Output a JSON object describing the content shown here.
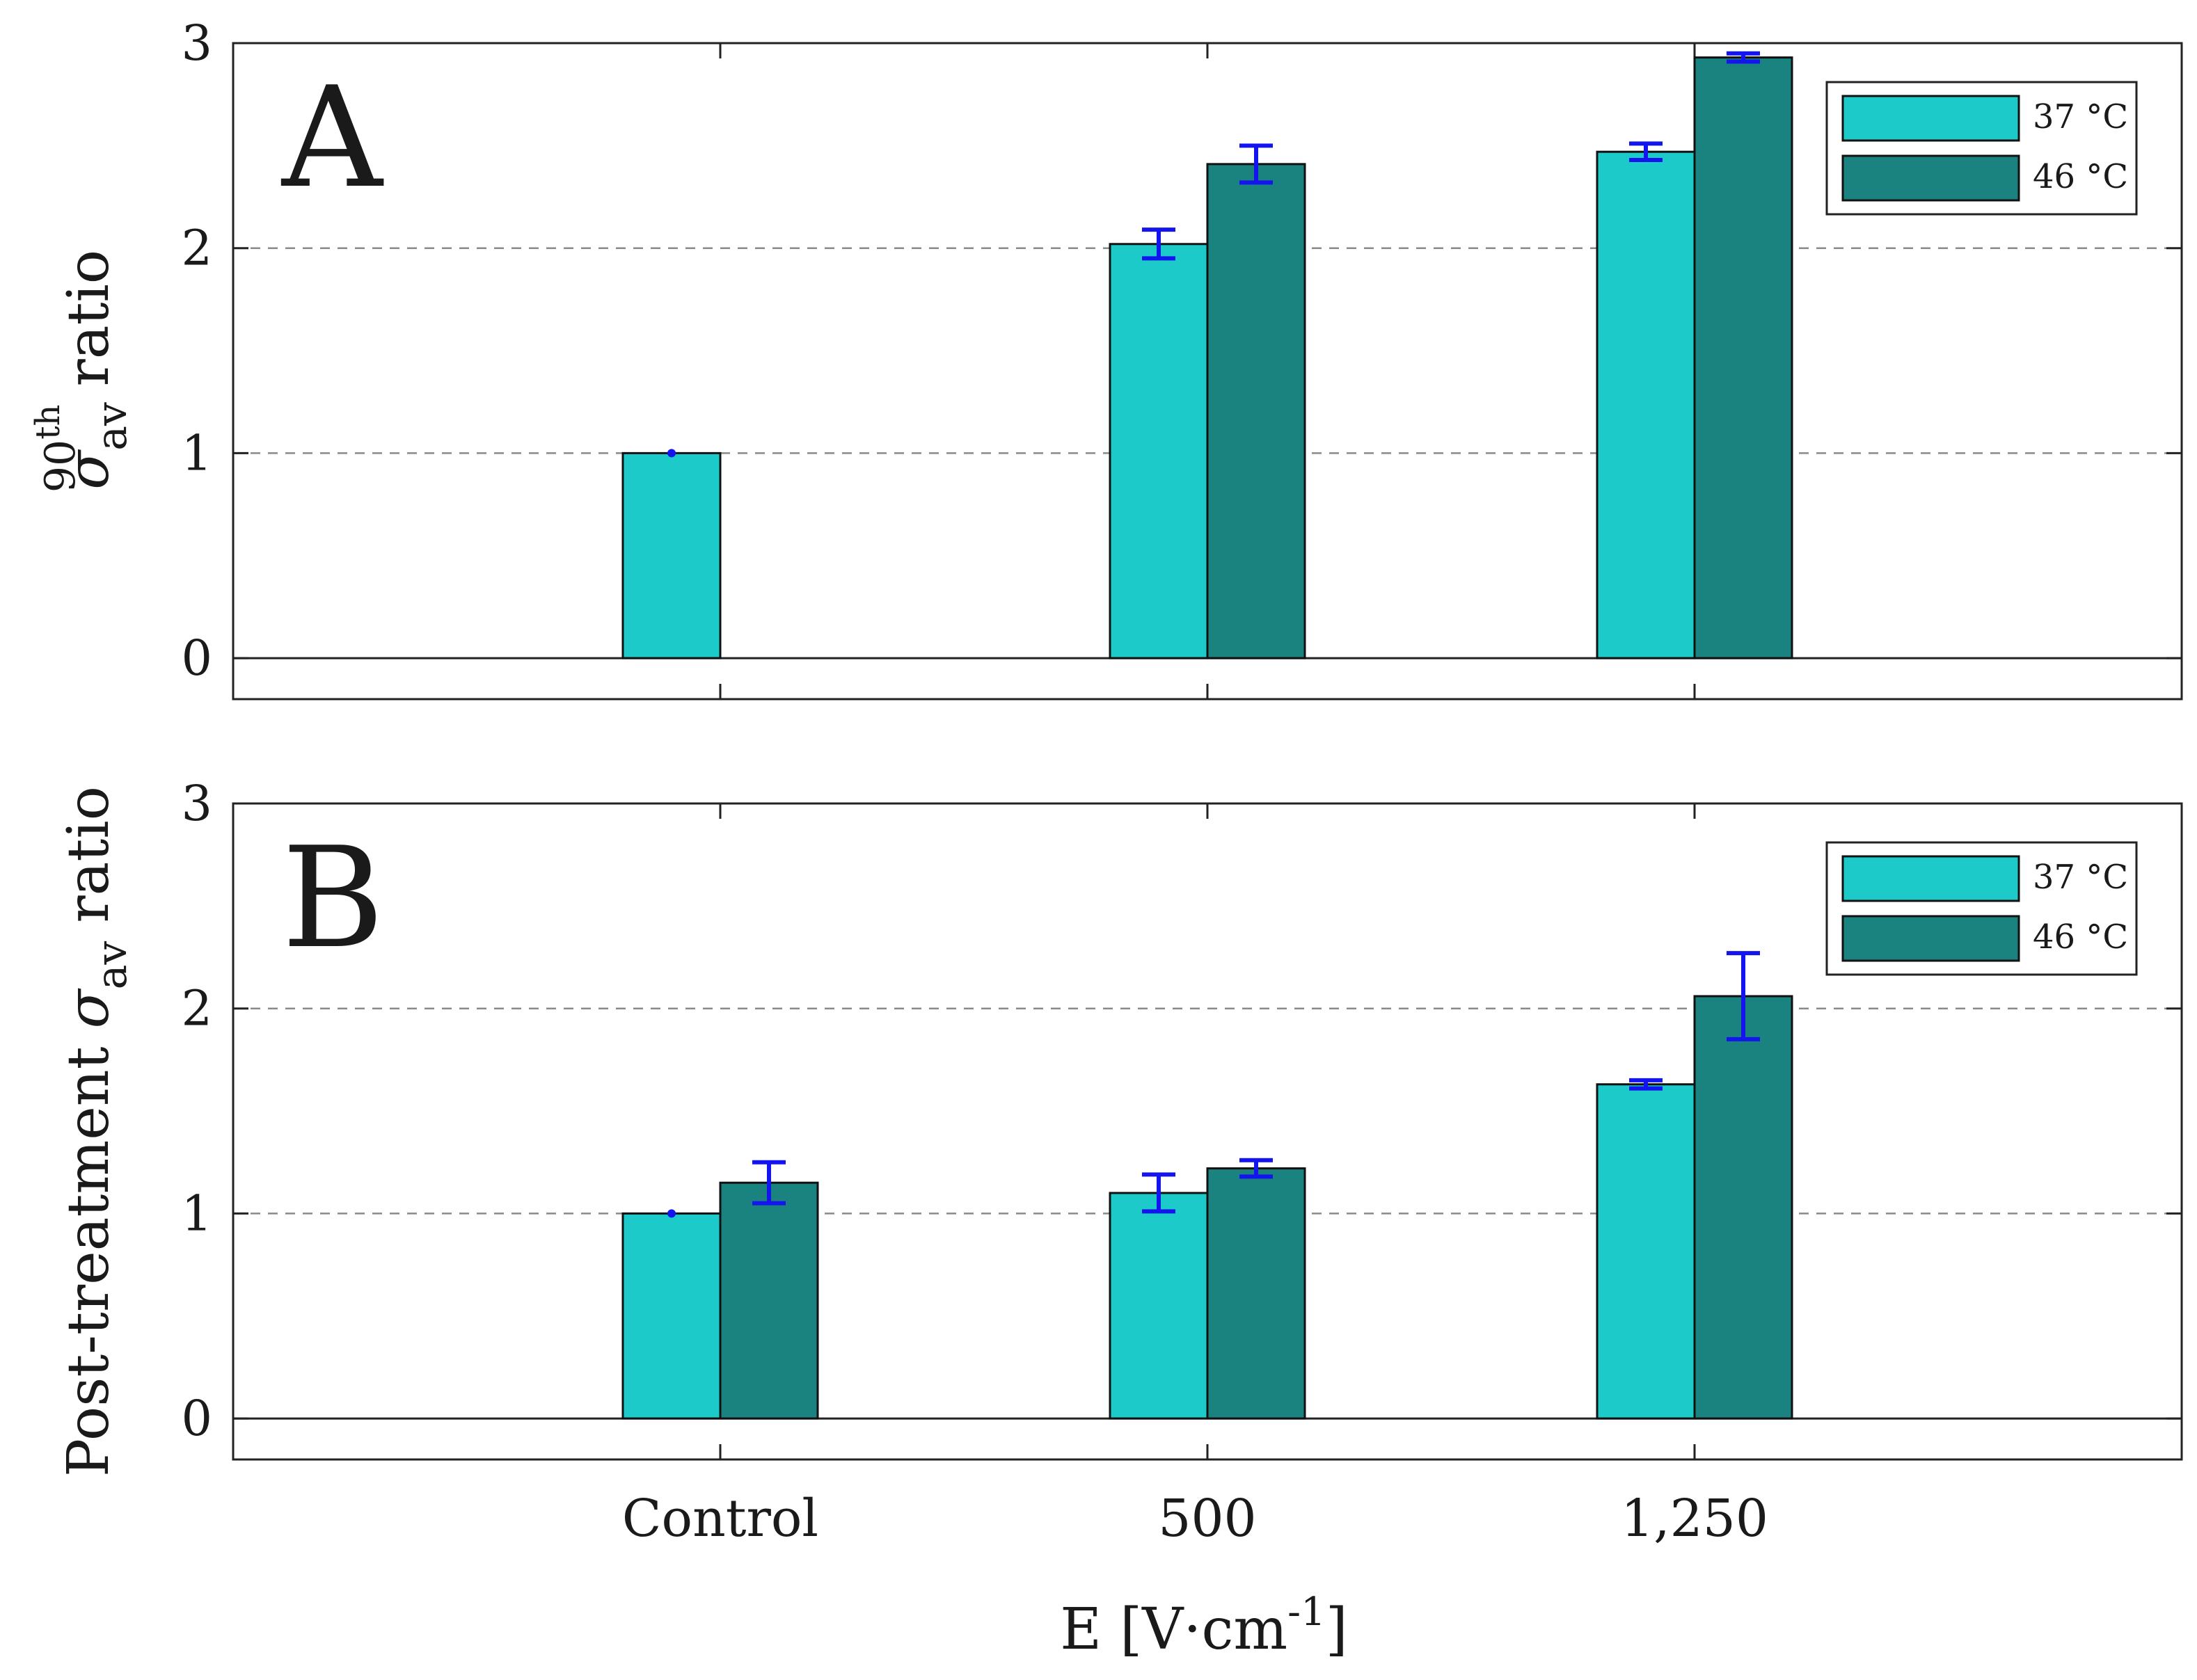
{
  "figure": {
    "xlabel": {
      "base": "E [V·cm",
      "sup": "-1",
      "close": "]"
    }
  },
  "colors": {
    "s37": "#1ccac9",
    "s46": "#1a8380",
    "error_bar": "#1414ee",
    "grid": "#8a8a8a",
    "axis": "#222222"
  },
  "chart_data": [
    {
      "panel_label": "A",
      "type": "bar",
      "categories": [
        "Control",
        "500",
        "1,250"
      ],
      "ylim": [
        -0.2,
        3.0
      ],
      "yticks": [
        0,
        1,
        2,
        3
      ],
      "grid_y": [
        1,
        2
      ],
      "ylabel": {
        "sigma": "σ",
        "sub": "av",
        "sup": "90",
        "sup2": "th",
        "rest": "ratio"
      },
      "legend": [
        "37 °C",
        "46 °C"
      ],
      "legend_position": "top-right",
      "series": [
        {
          "name": "37 °C",
          "values": [
            1.0,
            2.02,
            2.47
          ],
          "errors": [
            0.0,
            0.07,
            0.04
          ]
        },
        {
          "name": "46 °C",
          "values": [
            null,
            2.41,
            2.93
          ],
          "errors": [
            null,
            0.09,
            0.02
          ]
        }
      ]
    },
    {
      "panel_label": "B",
      "type": "bar",
      "categories": [
        "Control",
        "500",
        "1,250"
      ],
      "ylim": [
        -0.2,
        3.0
      ],
      "yticks": [
        0,
        1,
        2,
        3
      ],
      "grid_y": [
        1,
        2
      ],
      "ylabel": {
        "prefix": "Post-treatment ",
        "sigma": "σ",
        "sub": "av",
        "rest": " ratio"
      },
      "legend": [
        "37 °C",
        "46 °C"
      ],
      "legend_position": "top-right",
      "series": [
        {
          "name": "37 °C",
          "values": [
            1.0,
            1.1,
            1.63
          ],
          "errors": [
            0.0,
            0.09,
            0.02
          ]
        },
        {
          "name": "46 °C",
          "values": [
            1.15,
            1.22,
            2.06
          ],
          "errors": [
            0.1,
            0.04,
            0.21
          ]
        }
      ]
    }
  ]
}
